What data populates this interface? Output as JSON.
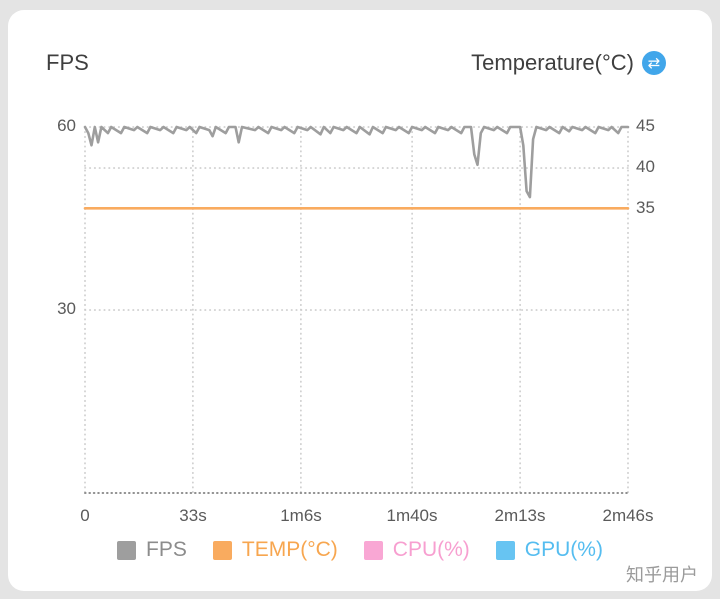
{
  "header": {
    "left_title": "FPS",
    "right_title": "Temperature(°C)",
    "swap_icon": {
      "glyph": "⇄",
      "bg_color": "#41a6ea"
    }
  },
  "legend": [
    {
      "label": "FPS",
      "swatch": "#9e9e9e",
      "text_color": "#8c8c8c"
    },
    {
      "label": "TEMP(°C)",
      "swatch": "#f9ab5f",
      "text_color": "#f7a64f"
    },
    {
      "label": "CPU(%)",
      "swatch": "#f9a7d4",
      "text_color": "#f79fd0"
    },
    {
      "label": "GPU(%)",
      "swatch": "#67c4f2",
      "text_color": "#55bdf0"
    }
  ],
  "watermark": "知乎用户",
  "colors": {
    "grid": "#c8c8c8",
    "axis_dots": "#8f8f8f",
    "axis_label": "#5a5a5a",
    "fps_line": "#9e9e9e",
    "temp_line": "#f9ab5f"
  },
  "chart_data": {
    "type": "line",
    "title_left": "FPS",
    "title_right": "Temperature(°C)",
    "grid": "dotted",
    "legend_position": "bottom",
    "x_axis": {
      "ticks": [
        "0",
        "33s",
        "1m6s",
        "1m40s",
        "2m13s",
        "2m46s"
      ],
      "tick_seconds": [
        0,
        33,
        66,
        100,
        133,
        166
      ],
      "range_seconds": [
        0,
        166
      ]
    },
    "left_axis": {
      "label": "FPS",
      "ticks": [
        60,
        30
      ],
      "range": [
        0,
        60
      ]
    },
    "right_axis": {
      "label": "Temperature(°C)",
      "ticks": [
        45,
        40,
        35
      ],
      "range": [
        0,
        45
      ]
    },
    "series": [
      {
        "name": "FPS",
        "axis": "left",
        "color": "#9e9e9e",
        "points": [
          [
            0,
            60
          ],
          [
            1,
            59
          ],
          [
            2,
            57
          ],
          [
            3,
            60
          ],
          [
            4,
            57.5
          ],
          [
            5,
            60
          ],
          [
            7,
            59
          ],
          [
            8,
            60
          ],
          [
            11,
            59
          ],
          [
            12,
            60
          ],
          [
            15,
            59.5
          ],
          [
            16,
            60
          ],
          [
            19,
            59
          ],
          [
            20,
            60
          ],
          [
            23,
            59.5
          ],
          [
            24,
            60
          ],
          [
            27,
            59
          ],
          [
            28,
            60
          ],
          [
            31,
            59.5
          ],
          [
            32,
            60
          ],
          [
            34,
            59
          ],
          [
            35,
            60
          ],
          [
            38,
            59.5
          ],
          [
            39,
            58.5
          ],
          [
            40,
            60
          ],
          [
            43,
            59
          ],
          [
            44,
            60
          ],
          [
            46,
            60
          ],
          [
            47,
            57.5
          ],
          [
            48,
            60
          ],
          [
            52,
            59.5
          ],
          [
            53,
            60
          ],
          [
            56,
            59
          ],
          [
            57,
            60
          ],
          [
            60,
            59.5
          ],
          [
            61,
            60
          ],
          [
            64,
            59
          ],
          [
            65,
            60
          ],
          [
            68,
            59.5
          ],
          [
            69,
            60
          ],
          [
            72,
            58.8
          ],
          [
            73,
            60
          ],
          [
            75,
            59
          ],
          [
            76,
            60
          ],
          [
            79,
            59.5
          ],
          [
            80,
            60
          ],
          [
            83,
            59
          ],
          [
            84,
            60
          ],
          [
            87,
            58.8
          ],
          [
            88,
            60
          ],
          [
            91,
            59
          ],
          [
            92,
            60
          ],
          [
            95,
            59.5
          ],
          [
            96,
            60
          ],
          [
            99,
            59
          ],
          [
            100,
            60
          ],
          [
            103,
            59.5
          ],
          [
            104,
            60
          ],
          [
            107,
            59
          ],
          [
            108,
            60
          ],
          [
            111,
            59.5
          ],
          [
            112,
            60
          ],
          [
            115,
            59
          ],
          [
            116,
            60
          ],
          [
            118,
            60
          ],
          [
            119,
            55.5
          ],
          [
            120,
            53.8
          ],
          [
            121,
            59
          ],
          [
            122,
            60
          ],
          [
            125,
            59.5
          ],
          [
            126,
            60
          ],
          [
            129,
            59
          ],
          [
            130,
            60
          ],
          [
            133,
            60
          ],
          [
            134,
            57
          ],
          [
            135,
            49.5
          ],
          [
            136,
            48.5
          ],
          [
            137,
            58
          ],
          [
            138,
            60
          ],
          [
            141,
            59.5
          ],
          [
            142,
            60
          ],
          [
            145,
            59
          ],
          [
            146,
            60
          ],
          [
            148,
            59.3
          ],
          [
            149,
            60
          ],
          [
            152,
            59.5
          ],
          [
            153,
            60
          ],
          [
            156,
            59
          ],
          [
            157,
            60
          ],
          [
            160,
            59.5
          ],
          [
            161,
            60
          ],
          [
            163,
            59
          ],
          [
            164,
            60
          ],
          [
            166,
            60
          ]
        ]
      },
      {
        "name": "TEMP(°C)",
        "axis": "right",
        "color": "#f9ab5f",
        "points": [
          [
            0,
            35
          ],
          [
            166,
            35
          ]
        ]
      },
      {
        "name": "CPU(%)",
        "axis": "right",
        "color": "#f9a7d4",
        "points": []
      },
      {
        "name": "GPU(%)",
        "axis": "right",
        "color": "#67c4f2",
        "points": []
      }
    ]
  }
}
